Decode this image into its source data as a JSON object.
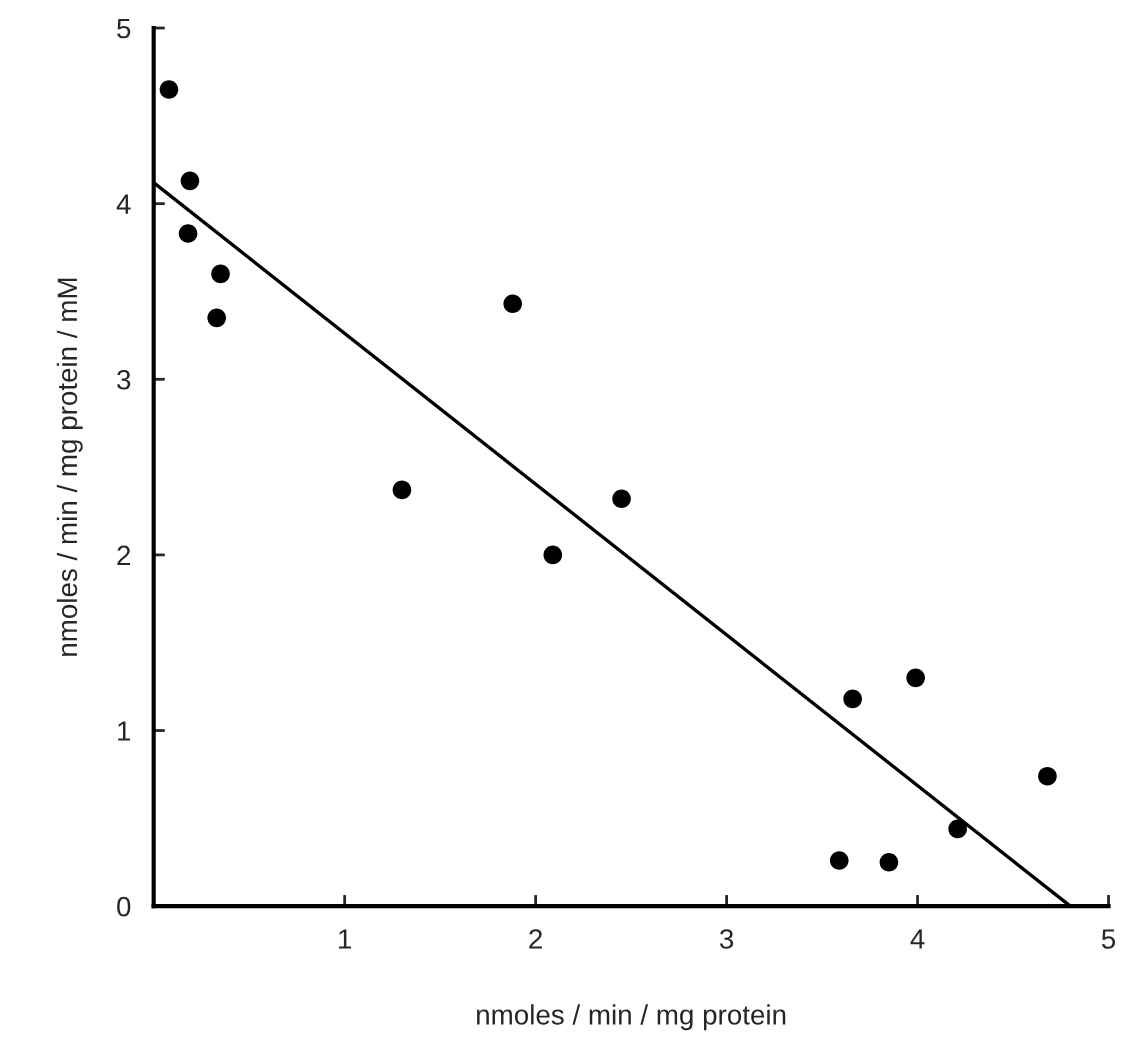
{
  "chart_data": {
    "type": "scatter",
    "xlabel": "nmoles / min / mg protein",
    "ylabel": "nmoles / min / mg protein / mM",
    "xlim": [
      0,
      5
    ],
    "ylim": [
      0,
      5
    ],
    "xticks": [
      1,
      2,
      3,
      4,
      5
    ],
    "yticks": [
      0,
      1,
      2,
      3,
      4,
      5
    ],
    "grid": false,
    "series": [
      {
        "marker": "circle",
        "color": "#000000",
        "x": [
          0.08,
          0.19,
          0.18,
          0.35,
          0.33,
          1.3,
          1.88,
          2.09,
          2.45,
          3.66,
          3.99,
          4.68,
          4.21,
          3.59,
          3.85
        ],
        "values": [
          4.65,
          4.13,
          3.83,
          3.6,
          3.35,
          2.37,
          3.43,
          2.0,
          2.32,
          1.18,
          1.3,
          0.74,
          0.44,
          0.26,
          0.25
        ]
      },
      {
        "type": "line",
        "color": "#000000",
        "x": [
          0,
          4.8
        ],
        "values": [
          4.12,
          0
        ],
        "line_style": "solid"
      }
    ]
  }
}
